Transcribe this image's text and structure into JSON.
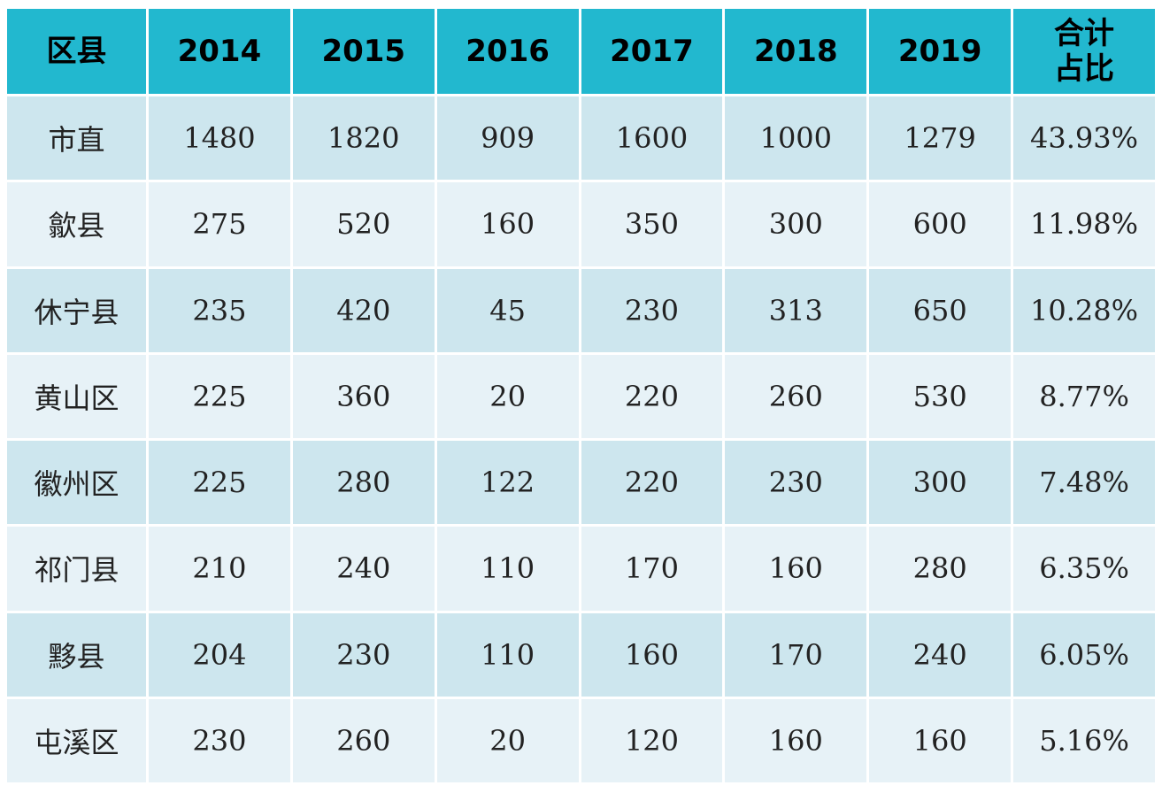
{
  "chart_data": {
    "type": "table",
    "columns": [
      "区县",
      "2014",
      "2015",
      "2016",
      "2017",
      "2018",
      "2019",
      "合计占比"
    ],
    "rows": [
      [
        "市直",
        "1480",
        "1820",
        "909",
        "1600",
        "1000",
        "1279",
        "43.93%"
      ],
      [
        "歙县",
        "275",
        "520",
        "160",
        "350",
        "300",
        "600",
        "11.98%"
      ],
      [
        "休宁县",
        "235",
        "420",
        "45",
        "230",
        "313",
        "650",
        "10.28%"
      ],
      [
        "黄山区",
        "225",
        "360",
        "20",
        "220",
        "260",
        "530",
        "8.77%"
      ],
      [
        "徽州区",
        "225",
        "280",
        "122",
        "220",
        "230",
        "300",
        "7.48%"
      ],
      [
        "祁门县",
        "210",
        "240",
        "110",
        "170",
        "160",
        "280",
        "6.35%"
      ],
      [
        "黟县",
        "204",
        "230",
        "110",
        "160",
        "170",
        "240",
        "6.05%"
      ],
      [
        "屯溪区",
        "230",
        "260",
        "20",
        "120",
        "160",
        "160",
        "5.16%"
      ]
    ],
    "colors": {
      "header": "#22b8cf",
      "row_odd": "#cde6ee",
      "row_even": "#e7f2f7"
    }
  }
}
